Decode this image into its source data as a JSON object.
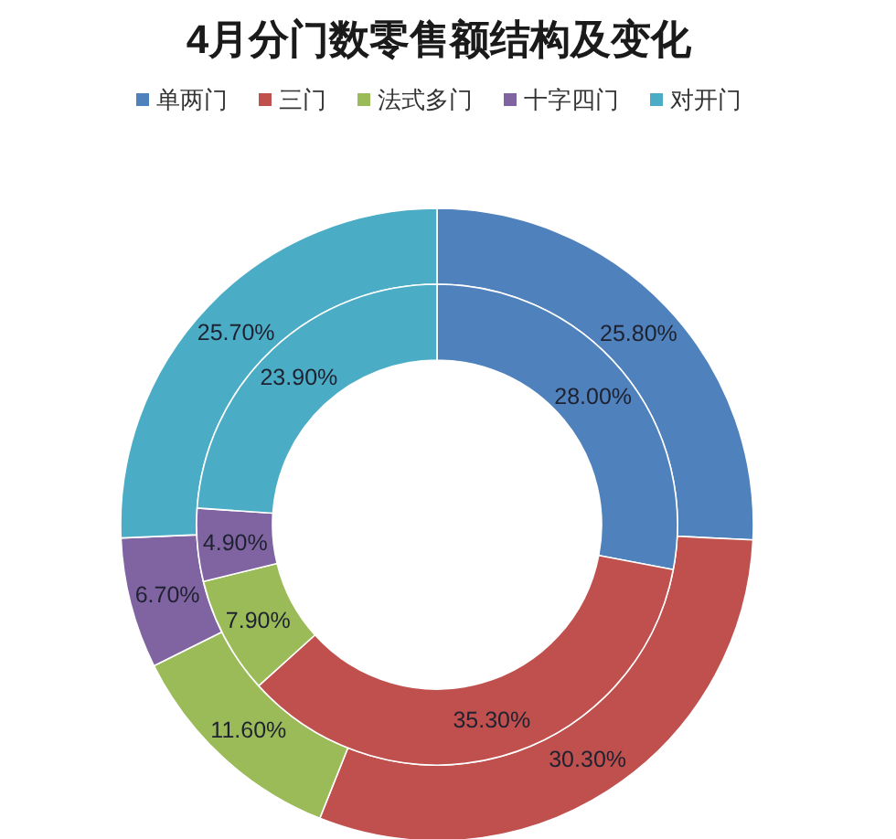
{
  "chart_data": {
    "type": "donut",
    "title": "4月分门数零售额结构及变化",
    "categories": [
      "单两门",
      "三门",
      "法式多门",
      "十字四门",
      "对开门"
    ],
    "colors": [
      "#4f81bd",
      "#c0504d",
      "#9bbb59",
      "#8064a2",
      "#4bacc6"
    ],
    "legend": "top",
    "series": [
      {
        "values": [
          25.8,
          30.3,
          11.6,
          6.7,
          25.7
        ],
        "value_labels": [
          "25.80%",
          "30.30%",
          "11.60%",
          "6.70%",
          "25.70%"
        ]
      },
      {
        "values": [
          28.0,
          35.3,
          7.9,
          4.9,
          23.9
        ],
        "value_labels": [
          "28.00%",
          "35.30%",
          "7.90%",
          "4.90%",
          "23.90%"
        ]
      }
    ]
  }
}
